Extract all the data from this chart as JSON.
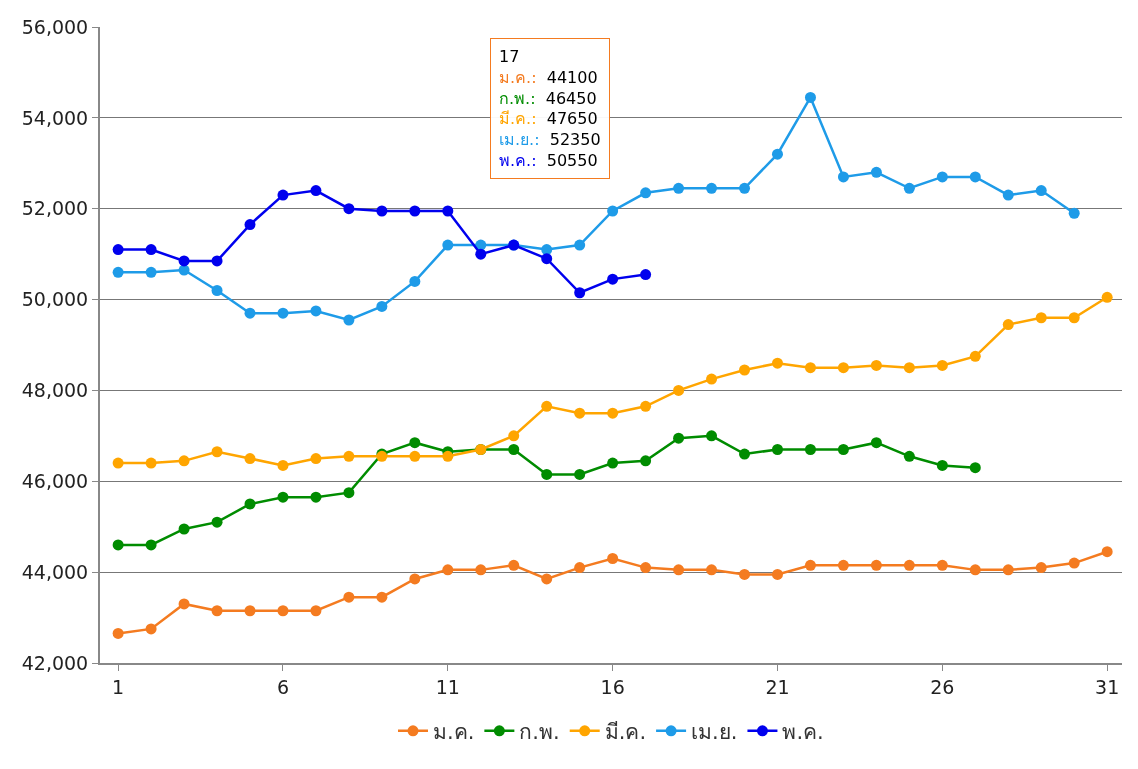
{
  "chart_data": {
    "type": "line",
    "x": [
      1,
      2,
      3,
      4,
      5,
      6,
      7,
      8,
      9,
      10,
      11,
      12,
      13,
      14,
      15,
      16,
      17,
      18,
      19,
      20,
      21,
      22,
      23,
      24,
      25,
      26,
      27,
      28,
      29,
      30,
      31
    ],
    "series": [
      {
        "name": "ม.ค.",
        "color": "#f47b20",
        "values": [
          42650,
          42750,
          43300,
          43150,
          43150,
          43150,
          43150,
          43450,
          43450,
          43850,
          44050,
          44050,
          44150,
          43850,
          44100,
          44300,
          44100,
          44050,
          44050,
          43950,
          43950,
          44150,
          44150,
          44150,
          44150,
          44150,
          44050,
          44050,
          44100,
          44200,
          44450
        ]
      },
      {
        "name": "ก.พ.",
        "color": "#008c00",
        "values": [
          44600,
          44600,
          44950,
          45100,
          45500,
          45650,
          45650,
          45750,
          46600,
          46850,
          46650,
          46700,
          46700,
          46150,
          46150,
          46400,
          46450,
          46950,
          47000,
          46600,
          46700,
          46700,
          46700,
          46850,
          46550,
          46350,
          46300,
          null,
          null,
          null,
          null
        ]
      },
      {
        "name": "มี.ค.",
        "color": "#ffa500",
        "values": [
          46400,
          46400,
          46450,
          46650,
          46500,
          46350,
          46500,
          46550,
          46550,
          46550,
          46550,
          46700,
          47000,
          47650,
          47500,
          47500,
          47650,
          48000,
          48250,
          48450,
          48600,
          48500,
          48500,
          48550,
          48500,
          48550,
          48750,
          49450,
          49600,
          49600,
          50050
        ]
      },
      {
        "name": "เม.ย.",
        "color": "#1e9be8",
        "values": [
          50600,
          50600,
          50650,
          50200,
          49700,
          49700,
          49750,
          49550,
          49850,
          50400,
          51200,
          51200,
          51200,
          51100,
          51200,
          51950,
          52350,
          52450,
          52450,
          52450,
          53200,
          54450,
          52700,
          52800,
          52450,
          52700,
          52700,
          52300,
          52400,
          51900,
          null
        ]
      },
      {
        "name": "พ.ค.",
        "color": "#0000ee",
        "values": [
          51100,
          51100,
          50850,
          50850,
          51650,
          52300,
          52400,
          52000,
          51950,
          51950,
          51950,
          51000,
          51200,
          50900,
          50150,
          50450,
          50550,
          null,
          null,
          null,
          null,
          null,
          null,
          null,
          null,
          null,
          null,
          null,
          null,
          null,
          null
        ]
      }
    ],
    "xlim": [
      0.45,
      31.45
    ],
    "xticks": [
      1,
      6,
      11,
      16,
      21,
      26,
      31
    ],
    "ylim": [
      42000,
      56000
    ],
    "yticks": [
      {
        "value": 42000,
        "label": "42,000"
      },
      {
        "value": 44000,
        "label": "44,000"
      },
      {
        "value": 46000,
        "label": "46,000"
      },
      {
        "value": 48000,
        "label": "48,000"
      },
      {
        "value": 50000,
        "label": "50,000"
      },
      {
        "value": 52000,
        "label": "52,000"
      },
      {
        "value": 54000,
        "label": "54,000"
      },
      {
        "value": 56000,
        "label": "56,000"
      }
    ],
    "grid": "y",
    "legend": "bottom",
    "marker": "circle",
    "line_style": "solid",
    "annotations": [
      "17",
      "ม.ค.: 44100",
      "ก.พ.: 46450",
      "มี.ค.: 47650",
      "เม.ย.: 52350",
      "พ.ค.: 50550"
    ]
  }
}
